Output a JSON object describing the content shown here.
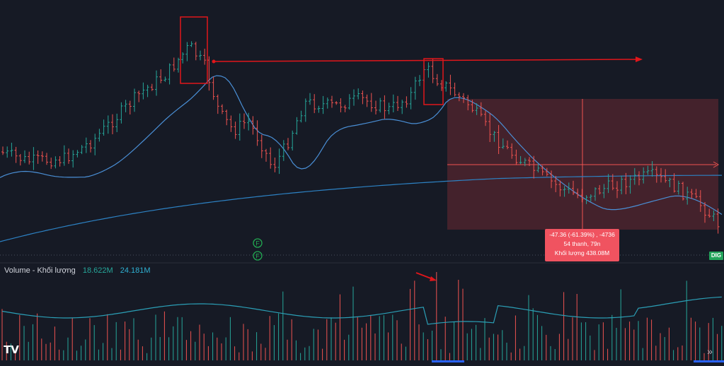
{
  "volume_pane": {
    "title": "Volume - Khối lượng",
    "value_1": "18.622M",
    "value_2": "24.181M"
  },
  "measure_tooltip": {
    "line1": "-47.36 (-61.39%) , -4736",
    "line2": "54 thanh, 79n",
    "line3": "Khối lượng 438.08M"
  },
  "price_axis_badge": "DIG",
  "event_markers": [
    "F",
    "F"
  ],
  "toolbar": {
    "logo": "TV",
    "scroll_icon": "chevron-double-right-icon"
  },
  "colors": {
    "background": "#161a25",
    "up": "#26a69a",
    "down": "#ef5350",
    "ma_fast": "#4a8fd6",
    "ma_slow": "#2d82c4",
    "volume_ma": "#2b9fb6",
    "annotation": "#e0161b",
    "measure_box": "#6b2a33",
    "tooltip_bg": "#f05360",
    "badge_bg": "#22a45a"
  },
  "chart_data": {
    "type": "ohlc",
    "series": [
      {
        "name": "Volume - Khối lượng",
        "type": "bar"
      }
    ],
    "measurement": {
      "change": -47.36,
      "change_percent": -61.39,
      "bars": 54,
      "period": "79n",
      "volume": "438.08M"
    }
  }
}
